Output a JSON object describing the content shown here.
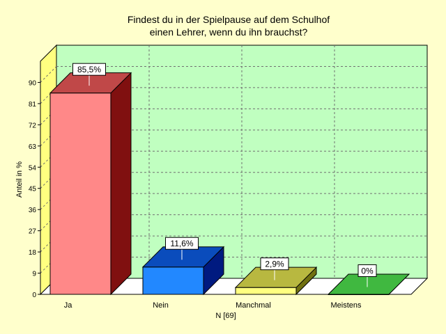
{
  "chart_data": {
    "type": "bar",
    "title_lines": [
      "Findest du in der Spielpause auf dem Schulhof",
      "einen Lehrer, wenn du ihn brauchst?"
    ],
    "ylabel": "Anteil in %",
    "xlabel": "N [69]",
    "ylim": [
      0,
      99
    ],
    "yticks": [
      0,
      9,
      18,
      27,
      36,
      45,
      54,
      63,
      72,
      81,
      90
    ],
    "grid": true,
    "categories": [
      "Ja",
      "Nein",
      "Manchmal",
      "Meistens"
    ],
    "values": [
      85.5,
      11.6,
      2.9,
      0
    ],
    "value_labels": [
      "85,5%",
      "11,6%",
      "2,9%",
      "0%"
    ],
    "colors": {
      "background": "#ffffcc",
      "wall": "#c0ffc0",
      "left_wall": "#ffff80",
      "bars": [
        {
          "front": "#ff8888",
          "top": "#c04848",
          "side": "#801010"
        },
        {
          "front": "#2288ff",
          "top": "#0a4cbc",
          "side": "#001a80"
        },
        {
          "front": "#ffff80",
          "top": "#b8b840",
          "side": "#707010"
        },
        {
          "front": "#66dd66",
          "top": "#40b840",
          "side": "#208020"
        }
      ]
    }
  }
}
